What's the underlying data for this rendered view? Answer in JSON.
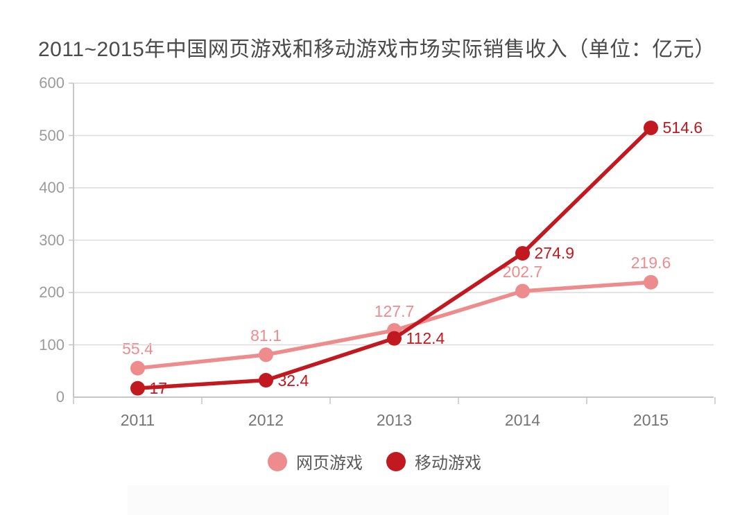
{
  "title": "2011~2015年中国网页游戏和移动游戏市场实际销售收入（单位：亿元）",
  "chart_data": {
    "type": "line",
    "title": "2011~2015年中国网页游戏和移动游戏市场实际销售收入（单位：亿元）",
    "categories": [
      "2011",
      "2012",
      "2013",
      "2014",
      "2015"
    ],
    "series": [
      {
        "name": "网页游戏",
        "color": "#ee8c8d",
        "values": [
          55.4,
          81.1,
          127.7,
          202.7,
          219.6
        ],
        "label_position": "above"
      },
      {
        "name": "移动游戏",
        "color": "#c2181f",
        "values": [
          17,
          32.4,
          112.4,
          274.9,
          514.6
        ],
        "label_position": "right"
      }
    ],
    "ylim": [
      0,
      600
    ],
    "yticks": [
      0,
      100,
      200,
      300,
      400,
      500,
      600
    ],
    "xlabel": "",
    "ylabel": "",
    "grid": "horizontal",
    "legend_position": "bottom"
  },
  "colors": {
    "grid": "#dcdcdc",
    "axis": "#c6c6c6",
    "y_tick_text": "#9b9b9b",
    "x_tick_text": "#757575",
    "title_text": "#4a4a4a",
    "legend_text": "#595959"
  }
}
